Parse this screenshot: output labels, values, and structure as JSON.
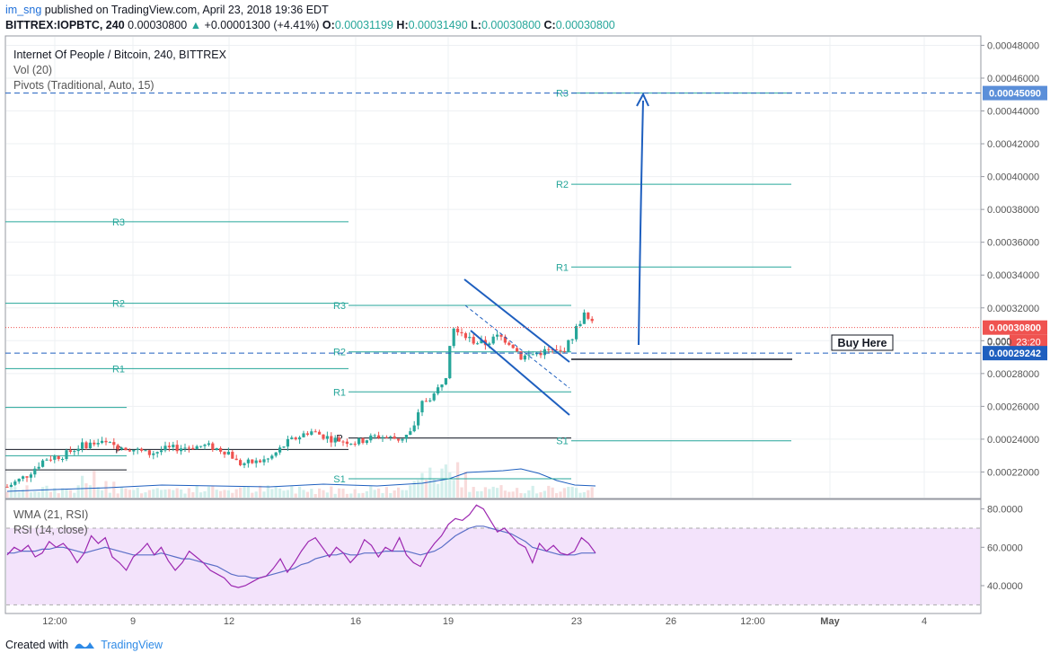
{
  "header": {
    "user": "im_sng",
    "published": "published on TradingView.com, April 23, 2018 19:36 EDT",
    "symbol_line": "BITTREX:IOPBTC, 240",
    "last": "0.00030800",
    "change": "+0.00001300 (+4.41%)",
    "o_label": "O:",
    "o": "0.00031199",
    "h_label": "H:",
    "h": "0.00031490",
    "l_label": "L:",
    "l": "0.00030800",
    "c_label": "C:",
    "c": "0.00030800"
  },
  "legend": {
    "title": "Internet Of People / Bitcoin, 240, BITTREX",
    "vol": "Vol (20)",
    "pivots": "Pivots (Traditional, Auto, 15)"
  },
  "rsi_legend": {
    "wma": "WMA (21, RSI)",
    "rsi": "RSI (14, close)"
  },
  "annotation": {
    "buy_here": "Buy Here"
  },
  "price_tags": {
    "target": "0.00045090",
    "last": "0.00030800",
    "countdown": "23:20",
    "entry": "0.00029242",
    "hidden": "0.000"
  },
  "colors": {
    "bull": "#26a69a",
    "bear": "#ef5350",
    "pivot": "#26a69a",
    "blue": "#1e5fbf",
    "rsi": "#9c27b0",
    "rsi_bg": "#f3e3fb"
  },
  "footer": {
    "created": "Created with",
    "brand": "TradingView"
  },
  "chart_data": [
    {
      "type": "candlestick",
      "title": "Internet Of People / Bitcoin, 240, BITTREX",
      "x_ticks": [
        "12:00",
        "9",
        "12",
        "16",
        "19",
        "23",
        "26",
        "12:00",
        "May",
        "4"
      ],
      "y_ticks": [
        "0.00022000",
        "0.00024000",
        "0.00026000",
        "0.00028000",
        "0.00030000",
        "0.00032000",
        "0.00034000",
        "0.00036000",
        "0.00038000",
        "0.00040000",
        "0.00042000",
        "0.00044000",
        "0.00046000",
        "0.00048000"
      ],
      "ylim": [
        0.000209,
        0.0004915
      ],
      "last_price": 0.000308,
      "entry_line": 0.00029242,
      "target_line": 0.0004509,
      "pivot_levels": [
        {
          "period": 1,
          "labels": [
            {
              "name": "R3",
              "value": 0.0003725
            },
            {
              "name": "R2",
              "value": 0.0003228
            },
            {
              "name": "R1",
              "value": 0.000283
            },
            {
              "name": "P",
              "value": 0.0002337
            }
          ]
        },
        {
          "period": 2,
          "labels": [
            {
              "name": "R3",
              "value": 0.0003215
            },
            {
              "name": "R2",
              "value": 0.0002932
            },
            {
              "name": "R1",
              "value": 0.0002688
            },
            {
              "name": "P",
              "value": 0.0002407
            },
            {
              "name": "S1",
              "value": 0.0002159
            }
          ]
        },
        {
          "period": 3,
          "labels": [
            {
              "name": "R3",
              "value": 0.0004509
            },
            {
              "name": "R2",
              "value": 0.0003953
            },
            {
              "name": "R1",
              "value": 0.0003449
            },
            {
              "name": "S1",
              "value": 0.000239
            }
          ]
        }
      ]
    },
    {
      "type": "line",
      "title": "RSI (14, close)",
      "y_ticks": [
        "40.0000",
        "60.0000",
        "80.0000"
      ],
      "ylim": [
        30,
        80
      ],
      "band": [
        30,
        70
      ],
      "series": [
        {
          "name": "RSI (14, close)",
          "values": [
            56,
            60,
            58,
            61,
            55,
            57,
            63,
            60,
            62,
            58,
            52,
            57,
            66,
            62,
            65,
            55,
            52,
            48,
            55,
            58,
            62,
            56,
            60,
            53,
            48,
            52,
            58,
            55,
            52,
            48,
            46,
            44,
            40,
            39,
            40,
            42,
            44,
            45,
            49,
            54,
            47,
            52,
            58,
            63,
            65,
            60,
            55,
            60,
            57,
            52,
            56,
            64,
            61,
            55,
            60,
            58,
            65,
            56,
            52,
            50,
            57,
            62,
            66,
            72,
            75,
            74,
            77,
            82,
            80,
            74,
            68,
            70,
            66,
            62,
            60,
            52,
            62,
            58,
            61,
            57,
            56,
            58,
            65,
            62,
            57
          ]
        },
        {
          "name": "WMA (21, RSI)",
          "values": [
            57,
            57,
            58,
            58,
            58,
            59,
            59,
            60,
            60,
            59,
            58,
            57,
            58,
            59,
            60,
            59,
            58,
            57,
            56,
            56,
            56,
            56,
            57,
            56,
            55,
            54,
            54,
            53,
            52,
            51,
            50,
            48,
            46,
            45,
            45,
            44,
            44,
            45,
            46,
            47,
            48,
            49,
            51,
            52,
            54,
            55,
            56,
            56,
            57,
            56,
            56,
            57,
            57,
            57,
            58,
            58,
            58,
            58,
            57,
            56,
            57,
            58,
            60,
            63,
            66,
            68,
            70,
            71,
            71,
            70,
            69,
            68,
            67,
            65,
            63,
            60,
            59,
            58,
            57,
            56,
            56,
            56,
            57,
            57,
            57
          ]
        }
      ]
    }
  ]
}
